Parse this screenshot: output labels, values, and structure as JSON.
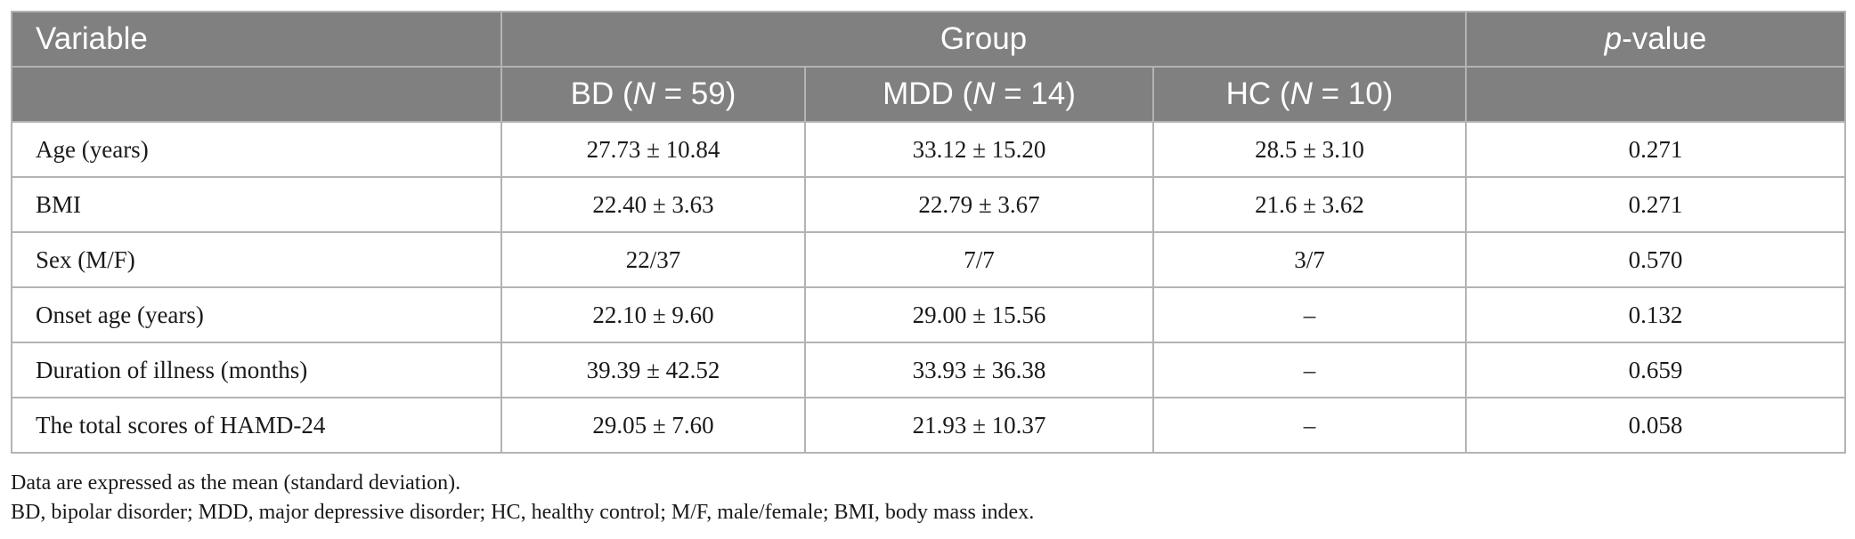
{
  "table": {
    "header_row1": {
      "variable": "Variable",
      "group": "Group",
      "p_prefix": "p",
      "p_suffix": "-value"
    },
    "header_row2": [
      {
        "prefix": "BD (",
        "n_label": "N",
        "suffix": " = 59)"
      },
      {
        "prefix": "MDD (",
        "n_label": "N",
        "suffix": " = 14)"
      },
      {
        "prefix": "HC (",
        "n_label": "N",
        "suffix": " = 10)"
      }
    ],
    "rows": [
      {
        "variable": "Age (years)",
        "bd": "27.73 ± 10.84",
        "mdd": "33.12 ± 15.20",
        "hc": "28.5 ± 3.10",
        "p": "0.271"
      },
      {
        "variable": "BMI",
        "bd": "22.40 ± 3.63",
        "mdd": "22.79 ± 3.67",
        "hc": "21.6 ± 3.62",
        "p": "0.271"
      },
      {
        "variable": "Sex (M/F)",
        "bd": "22/37",
        "mdd": "7/7",
        "hc": "3/7",
        "p": "0.570"
      },
      {
        "variable": "Onset age (years)",
        "bd": "22.10 ± 9.60",
        "mdd": "29.00 ± 15.56",
        "hc": "–",
        "p": "0.132"
      },
      {
        "variable": "Duration of illness (months)",
        "bd": "39.39 ± 42.52",
        "mdd": "33.93 ± 36.38",
        "hc": "–",
        "p": "0.659"
      },
      {
        "variable": "The total scores of HAMD-24",
        "bd": "29.05 ± 7.60",
        "mdd": "21.93 ± 10.37",
        "hc": "–",
        "p": "0.058"
      }
    ]
  },
  "notes": [
    "Data are expressed as the mean (standard deviation).",
    "BD, bipolar disorder; MDD, major depressive disorder; HC, healthy control; M/F, male/female; BMI, body mass index."
  ]
}
